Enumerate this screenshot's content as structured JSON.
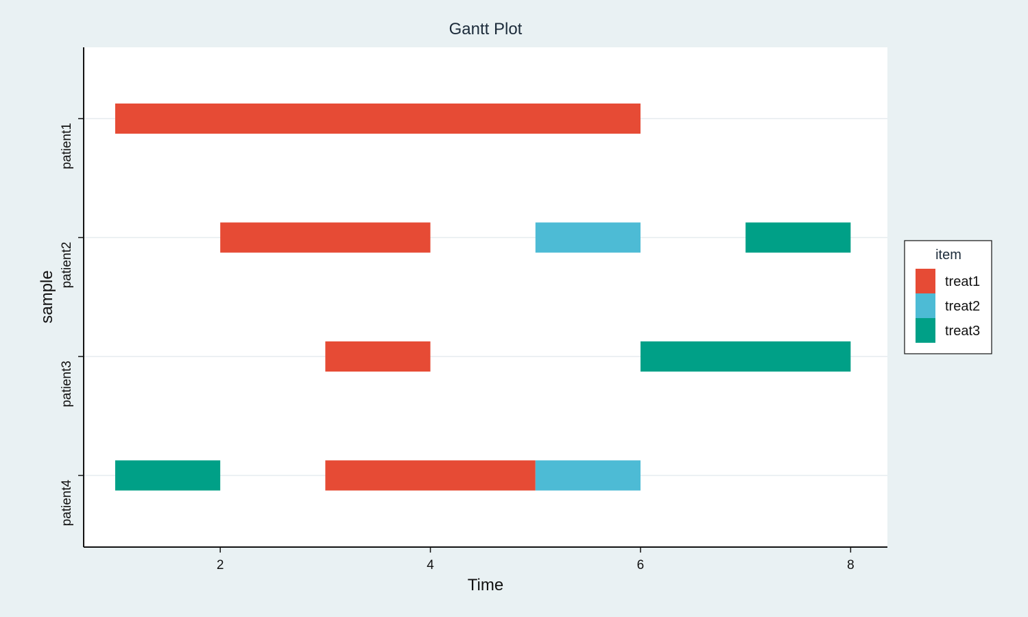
{
  "chart_data": {
    "type": "gantt",
    "title": "Gantt Plot",
    "xlabel": "Time",
    "ylabel": "sample",
    "xlim": [
      0.7,
      8.35
    ],
    "xticks": [
      2,
      4,
      6,
      8
    ],
    "categories": [
      "patient1",
      "patient2",
      "patient3",
      "patient4"
    ],
    "legend": {
      "title": "item",
      "position": "right",
      "items": [
        {
          "label": "treat1",
          "color": "#e64b35"
        },
        {
          "label": "treat2",
          "color": "#4dbbd5"
        },
        {
          "label": "treat3",
          "color": "#00a087"
        }
      ]
    },
    "segments": [
      {
        "sample": "patient1",
        "item": "treat1",
        "start": 1,
        "end": 6
      },
      {
        "sample": "patient2",
        "item": "treat1",
        "start": 2,
        "end": 4
      },
      {
        "sample": "patient2",
        "item": "treat2",
        "start": 5,
        "end": 6
      },
      {
        "sample": "patient2",
        "item": "treat3",
        "start": 7,
        "end": 8
      },
      {
        "sample": "patient3",
        "item": "treat1",
        "start": 3,
        "end": 4
      },
      {
        "sample": "patient3",
        "item": "treat3",
        "start": 6,
        "end": 8
      },
      {
        "sample": "patient4",
        "item": "treat3",
        "start": 1,
        "end": 2
      },
      {
        "sample": "patient4",
        "item": "treat1",
        "start": 3,
        "end": 5
      },
      {
        "sample": "patient4",
        "item": "treat2",
        "start": 5,
        "end": 6
      }
    ],
    "grid": true
  }
}
